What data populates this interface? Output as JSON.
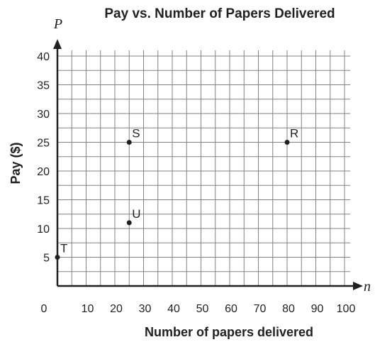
{
  "chart_data": {
    "type": "scatter",
    "title": "Pay vs. Number of Papers Delivered",
    "xlabel": "Number of papers delivered",
    "ylabel": "Pay ($)",
    "x_axis_variable": "n",
    "y_axis_variable": "P",
    "xlim": [
      0,
      102
    ],
    "ylim": [
      0,
      41
    ],
    "x_ticks": [
      0,
      10,
      20,
      30,
      40,
      50,
      60,
      70,
      80,
      90,
      100
    ],
    "y_ticks": [
      5,
      10,
      15,
      20,
      25,
      30,
      35,
      40
    ],
    "grid": true,
    "grid_x_step": 5,
    "grid_y_step": 2.5,
    "points": [
      {
        "label": "S",
        "x": 25,
        "y": 25
      },
      {
        "label": "R",
        "x": 80,
        "y": 25
      },
      {
        "label": "U",
        "x": 25,
        "y": 11
      },
      {
        "label": "T",
        "x": 0,
        "y": 5
      }
    ],
    "colors": {
      "grid": "#808285",
      "axis": "#231f20",
      "point": "#231f20",
      "text": "#231f20"
    }
  }
}
